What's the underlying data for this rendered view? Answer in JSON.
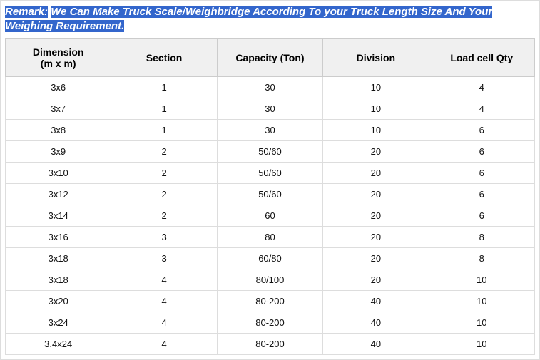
{
  "remark": {
    "label": "Remark:",
    "text": "We Can Make Truck Scale/Weighbridge According To your Truck Length Size And Your Weighing Requirement.",
    "highlight_bg": "#3366cc",
    "highlight_fg": "#ffffff"
  },
  "table": {
    "header_bg": "#f0f0f0",
    "border_color": "#cccccc",
    "row_border": "#dddddd",
    "columns": [
      {
        "label_line1": "Dimension",
        "label_line2": "(m x m)"
      },
      {
        "label_line1": "Section",
        "label_line2": ""
      },
      {
        "label_line1": "Capacity (Ton)",
        "label_line2": ""
      },
      {
        "label_line1": "Division",
        "label_line2": ""
      },
      {
        "label_line1": "Load cell Qty",
        "label_line2": ""
      }
    ],
    "rows": [
      [
        "3x6",
        "1",
        "30",
        "10",
        "4"
      ],
      [
        "3x7",
        "1",
        "30",
        "10",
        "4"
      ],
      [
        "3x8",
        "1",
        "30",
        "10",
        "6"
      ],
      [
        "3x9",
        "2",
        "50/60",
        "20",
        "6"
      ],
      [
        "3x10",
        "2",
        "50/60",
        "20",
        "6"
      ],
      [
        "3x12",
        "2",
        "50/60",
        "20",
        "6"
      ],
      [
        "3x14",
        "2",
        "60",
        "20",
        "6"
      ],
      [
        "3x16",
        "3",
        "80",
        "20",
        "8"
      ],
      [
        "3x18",
        "3",
        "60/80",
        "20",
        "8"
      ],
      [
        "3x18",
        "4",
        "80/100",
        "20",
        "10"
      ],
      [
        "3x20",
        "4",
        "80-200",
        "40",
        "10"
      ],
      [
        "3x24",
        "4",
        "80-200",
        "40",
        "10"
      ],
      [
        "3.4x24",
        "4",
        "80-200",
        "40",
        "10"
      ]
    ]
  }
}
